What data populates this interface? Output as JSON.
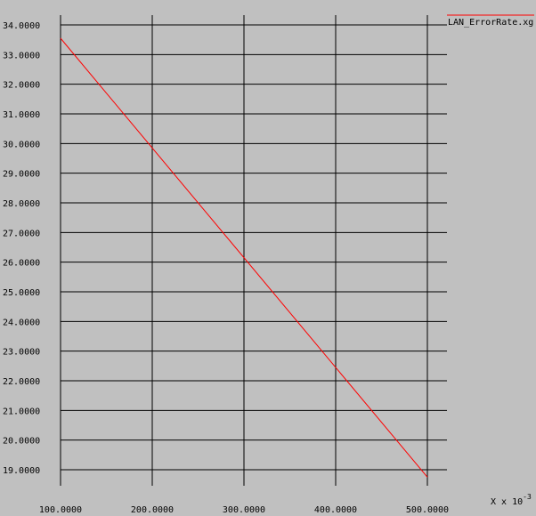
{
  "chart_data": {
    "type": "line",
    "x_scale_label": "X x 10",
    "x_scale_exponent": "-3",
    "x": [
      100,
      500
    ],
    "x_ticks": [
      100,
      200,
      300,
      400,
      500
    ],
    "x_tick_labels": [
      "100.0000",
      "200.0000",
      "300.0000",
      "400.0000",
      "500.0000"
    ],
    "y_ticks": [
      19,
      20,
      21,
      22,
      23,
      24,
      25,
      26,
      27,
      28,
      29,
      30,
      31,
      32,
      33,
      34
    ],
    "y_tick_labels": [
      "19.0000",
      "20.0000",
      "21.0000",
      "22.0000",
      "23.0000",
      "24.0000",
      "25.0000",
      "26.0000",
      "27.0000",
      "28.0000",
      "29.0000",
      "30.0000",
      "31.0000",
      "32.0000",
      "33.0000",
      "34.0000"
    ],
    "series": [
      {
        "name": "LAN_ErrorRate.xg",
        "color": "#ff0000",
        "x": [
          100,
          500
        ],
        "y": [
          33.55,
          18.75
        ]
      }
    ],
    "grid": true,
    "legend_position": "top-right",
    "background_color": "#c0c0c0",
    "grid_color": "#000000"
  }
}
